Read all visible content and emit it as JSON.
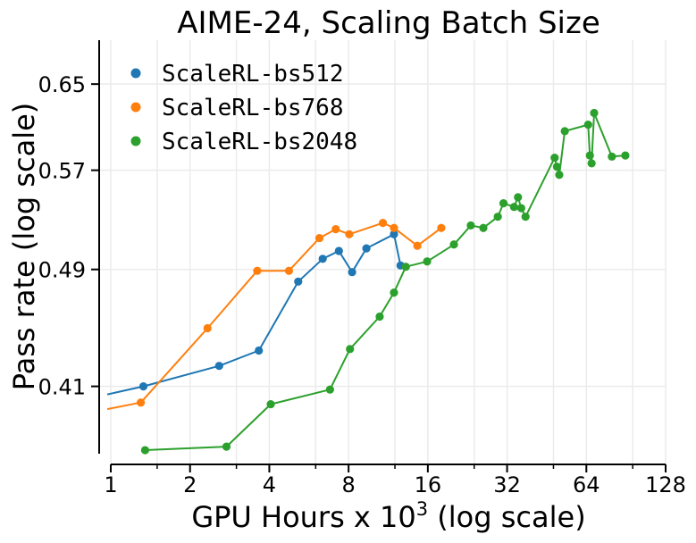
{
  "chart_data": {
    "type": "line",
    "title": "AIME-24, Scaling Batch Size",
    "xlabel_main": "GPU Hours x 10",
    "xlabel_exp": "3",
    "xlabel_tail": " (log scale)",
    "ylabel": "Pass rate (log scale)",
    "xscale": "log2",
    "yscale": "log",
    "xlim": [
      0.97,
      128
    ],
    "ylim": [
      0.37,
      0.695
    ],
    "xticks": [
      1,
      2,
      4,
      8,
      16,
      32,
      64,
      128
    ],
    "xtick_labels": [
      "1",
      "2",
      "4",
      "8",
      "16",
      "32",
      "64",
      "128"
    ],
    "yticks": [
      0.41,
      0.49,
      0.57,
      0.65
    ],
    "ytick_labels": [
      "0.41",
      "0.49",
      "0.57",
      "0.65"
    ],
    "legend_position": "top-left",
    "grid": true,
    "series": [
      {
        "name": "ScaleRL-bs512",
        "color": "#1f77b4",
        "x": [
          0.97,
          1.33,
          2.58,
          3.65,
          5.15,
          6.38,
          7.35,
          8.25,
          9.35,
          11.9,
          12.6
        ],
        "y": [
          0.405,
          0.41,
          0.423,
          0.433,
          0.481,
          0.498,
          0.504,
          0.488,
          0.506,
          0.517,
          0.493
        ]
      },
      {
        "name": "ScaleRL-bs768",
        "color": "#ff7f0e",
        "x": [
          0.97,
          1.3,
          2.33,
          3.6,
          4.75,
          6.2,
          7.15,
          8.05,
          10.8,
          11.9,
          14.6,
          18.0
        ],
        "y": [
          0.396,
          0.4,
          0.448,
          0.489,
          0.489,
          0.514,
          0.521,
          0.517,
          0.526,
          0.522,
          0.508,
          0.522
        ]
      },
      {
        "name": "ScaleRL-bs2048",
        "color": "#2ca02c",
        "x": [
          1.35,
          2.75,
          4.05,
          6.8,
          8.1,
          10.5,
          11.9,
          13.2,
          15.9,
          20.1,
          23.3,
          26.0,
          29.5,
          31.0,
          34.0,
          35.2,
          36.2,
          37.6,
          48.5,
          49.5,
          50.5,
          53.0,
          65.0,
          66.0,
          67.0,
          68.5,
          80.0,
          90.0
        ],
        "y": [
          0.372,
          0.374,
          0.399,
          0.408,
          0.434,
          0.456,
          0.473,
          0.492,
          0.496,
          0.509,
          0.524,
          0.522,
          0.531,
          0.542,
          0.539,
          0.547,
          0.538,
          0.531,
          0.581,
          0.573,
          0.566,
          0.605,
          0.611,
          0.583,
          0.576,
          0.622,
          0.582,
          0.583
        ]
      }
    ]
  }
}
